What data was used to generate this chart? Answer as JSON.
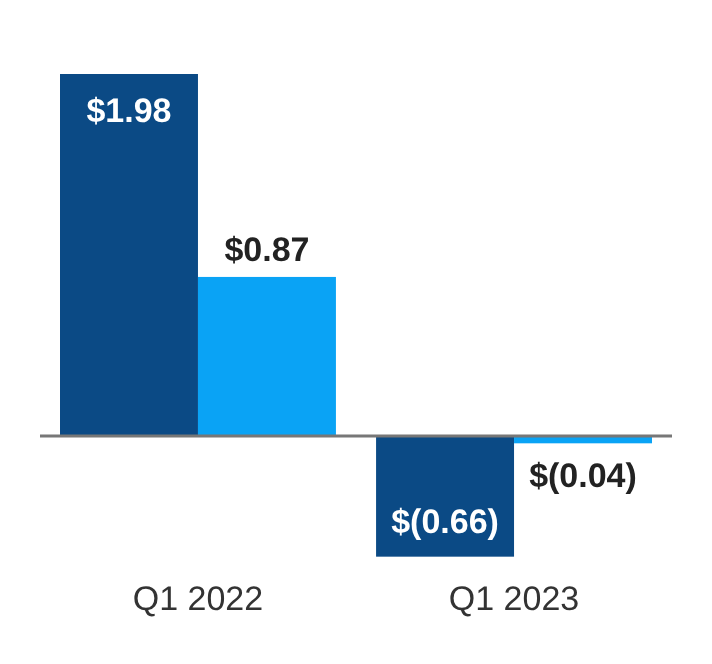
{
  "chart_data": {
    "type": "bar",
    "categories": [
      "Q1 2022",
      "Q1 2023"
    ],
    "series": [
      {
        "color": "#0b4a85",
        "values": [
          1.98,
          -0.66
        ],
        "value_labels": [
          "$1.98",
          "$(0.66)"
        ]
      },
      {
        "color": "#0aa3f5",
        "values": [
          0.87,
          -0.04
        ],
        "value_labels": [
          "$0.87",
          "$(0.04)"
        ]
      }
    ]
  }
}
